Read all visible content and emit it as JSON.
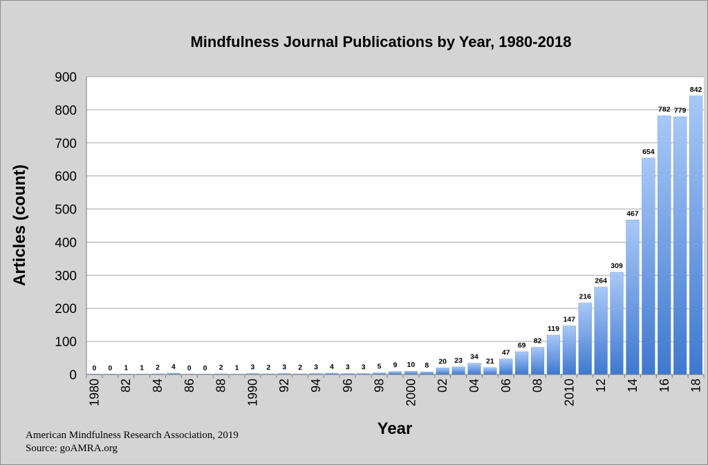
{
  "chart_data": {
    "type": "bar",
    "title": "Mindfulness Journal Publications by Year, 1980-2018",
    "xlabel": "Year",
    "ylabel": "Articles (count)",
    "ylim": [
      0,
      900
    ],
    "yticks": [
      0,
      100,
      200,
      300,
      400,
      500,
      600,
      700,
      800,
      900
    ],
    "grid": true,
    "legend": "none",
    "bar_color_top": "#a8c8f8",
    "bar_color_bottom": "#3e78d0",
    "categories": [
      "1980",
      "1981",
      "1982",
      "1983",
      "1984",
      "1985",
      "1986",
      "1987",
      "1988",
      "1989",
      "1990",
      "1991",
      "1992",
      "1993",
      "1994",
      "1995",
      "1996",
      "1997",
      "1998",
      "1999",
      "2000",
      "2001",
      "2002",
      "2003",
      "2004",
      "2005",
      "2006",
      "2007",
      "2008",
      "2009",
      "2010",
      "2011",
      "2012",
      "2013",
      "2014",
      "2015",
      "2016",
      "2017",
      "2018"
    ],
    "tick_labels": [
      "1980",
      "",
      "82",
      "",
      "84",
      "",
      "86",
      "",
      "88",
      "",
      "1990",
      "",
      "92",
      "",
      "94",
      "",
      "96",
      "",
      "98",
      "",
      "2000",
      "",
      "02",
      "",
      "04",
      "",
      "06",
      "",
      "08",
      "",
      "2010",
      "",
      "12",
      "",
      "14",
      "",
      "16",
      "",
      "18"
    ],
    "values": [
      0,
      0,
      1,
      1,
      2,
      4,
      0,
      0,
      2,
      1,
      3,
      2,
      3,
      2,
      3,
      4,
      3,
      3,
      5,
      9,
      10,
      8,
      20,
      23,
      34,
      21,
      47,
      69,
      82,
      119,
      147,
      216,
      264,
      309,
      467,
      654,
      782,
      779,
      842
    ]
  },
  "source": {
    "line1": "American Mindfulness Research Association, 2019",
    "line2": "Source: goAMRA.org"
  }
}
